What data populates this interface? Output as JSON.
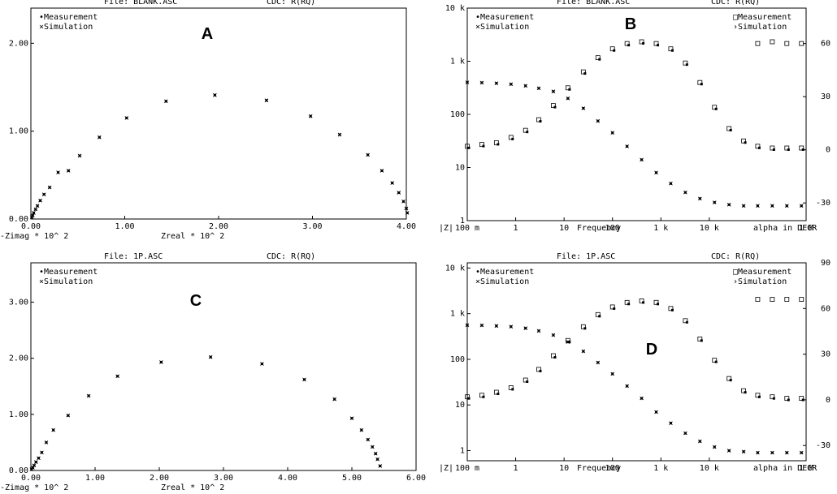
{
  "chart_data": [
    {
      "id": "A",
      "type": "scatter",
      "header": {
        "file": "File: BLANK.ASC",
        "cdc": "CDC: R(RQ)"
      },
      "legend": [
        "•Measurement",
        "×Simulation"
      ],
      "xlabel": "Zreal * 10^  2",
      "ylabel": "-Zimag * 10^  2",
      "xlim": [
        0,
        4
      ],
      "ylim": [
        0,
        2.4
      ],
      "x_ticks": [
        "0.00",
        "1.00",
        "2.00",
        "3.00",
        "4.00"
      ],
      "y_ticks": [
        "0.00",
        "1.00",
        "2.00"
      ],
      "points": [
        [
          0.01,
          0.02
        ],
        [
          0.02,
          0.04
        ],
        [
          0.03,
          0.07
        ],
        [
          0.05,
          0.11
        ],
        [
          0.07,
          0.15
        ],
        [
          0.1,
          0.21
        ],
        [
          0.14,
          0.28
        ],
        [
          0.2,
          0.36
        ],
        [
          0.29,
          0.53
        ],
        [
          0.4,
          0.55
        ],
        [
          0.52,
          0.72
        ],
        [
          0.73,
          0.93
        ],
        [
          1.02,
          1.15
        ],
        [
          1.44,
          1.34
        ],
        [
          1.96,
          1.41
        ],
        [
          2.51,
          1.35
        ],
        [
          2.98,
          1.17
        ],
        [
          3.29,
          0.96
        ],
        [
          3.59,
          0.73
        ],
        [
          3.74,
          0.55
        ],
        [
          3.85,
          0.41
        ],
        [
          3.92,
          0.3
        ],
        [
          3.97,
          0.2
        ],
        [
          4.0,
          0.12
        ],
        [
          4.01,
          0.07
        ]
      ]
    },
    {
      "id": "B",
      "type": "scatter",
      "header": {
        "file": "File: BLANK.ASC",
        "cdc": "CDC: R(RQ)"
      },
      "legend_left": [
        "•Measurement",
        "×Simulation"
      ],
      "legend_right": [
        "□Measurement",
        "›Simulation"
      ],
      "xlabel": "Frequency",
      "left_axis_label": "|Z|",
      "right_axis_label": "alpha in DEGR",
      "x_log_range": [
        0.1,
        1000000
      ],
      "y_log_range": [
        1,
        10000
      ],
      "phase_range": [
        -40,
        80
      ],
      "x_ticks": [
        "100 m",
        "1",
        "10",
        "100",
        "1 k",
        "10 k",
        "1 M"
      ],
      "y_ticks": [
        "1",
        "10",
        "100",
        "1 k",
        "10 k"
      ],
      "phase_ticks": [
        "-30",
        "0",
        "30",
        "60"
      ],
      "magnitude_points": [
        [
          0.1,
          400
        ],
        [
          0.2,
          395
        ],
        [
          0.4,
          385
        ],
        [
          0.8,
          370
        ],
        [
          1.6,
          345
        ],
        [
          3,
          310
        ],
        [
          6,
          270
        ],
        [
          12,
          200
        ],
        [
          25,
          130
        ],
        [
          50,
          75
        ],
        [
          100,
          45
        ],
        [
          200,
          25
        ],
        [
          400,
          14
        ],
        [
          800,
          8
        ],
        [
          1600,
          5
        ],
        [
          3200,
          3.4
        ],
        [
          6400,
          2.6
        ],
        [
          12800,
          2.2
        ],
        [
          25600,
          2.0
        ],
        [
          51200,
          1.9
        ],
        [
          100000,
          1.9
        ],
        [
          200000,
          1.9
        ],
        [
          400000,
          1.9
        ],
        [
          800000,
          1.9
        ]
      ],
      "phase_points": [
        [
          0.1,
          2
        ],
        [
          0.2,
          3
        ],
        [
          0.4,
          4
        ],
        [
          0.8,
          7
        ],
        [
          1.6,
          11
        ],
        [
          3,
          17
        ],
        [
          6,
          25
        ],
        [
          12,
          35
        ],
        [
          25,
          44
        ],
        [
          50,
          52
        ],
        [
          100,
          57
        ],
        [
          200,
          60
        ],
        [
          400,
          61
        ],
        [
          800,
          60
        ],
        [
          1600,
          57
        ],
        [
          3200,
          49
        ],
        [
          6400,
          38
        ],
        [
          12800,
          24
        ],
        [
          25600,
          12
        ],
        [
          51200,
          5
        ],
        [
          100000,
          2
        ],
        [
          200000,
          1
        ],
        [
          400000,
          1
        ],
        [
          800000,
          1
        ]
      ],
      "phase_marker_points": [
        [
          100000,
          60
        ],
        [
          200000,
          61
        ],
        [
          400000,
          60
        ],
        [
          800000,
          60
        ],
        [
          1600000,
          59
        ]
      ]
    },
    {
      "id": "C",
      "type": "scatter",
      "header": {
        "file": "File: 1P.ASC",
        "cdc": "CDC: R(RQ)"
      },
      "legend": [
        "•Measurement",
        "×Simulation"
      ],
      "xlabel": "Zreal * 10^  2",
      "ylabel": "-Zimag * 10^  2",
      "xlim": [
        0,
        6
      ],
      "ylim": [
        0,
        3.7
      ],
      "x_ticks": [
        "0.00",
        "1.00",
        "2.00",
        "3.00",
        "4.00",
        "5.00",
        "6.00"
      ],
      "y_ticks": [
        "0.00",
        "1.00",
        "2.00",
        "3.00"
      ],
      "points": [
        [
          0.01,
          0.02
        ],
        [
          0.03,
          0.05
        ],
        [
          0.05,
          0.09
        ],
        [
          0.08,
          0.15
        ],
        [
          0.12,
          0.22
        ],
        [
          0.17,
          0.32
        ],
        [
          0.24,
          0.5
        ],
        [
          0.35,
          0.72
        ],
        [
          0.58,
          0.98
        ],
        [
          0.9,
          1.33
        ],
        [
          1.35,
          1.68
        ],
        [
          2.03,
          1.93
        ],
        [
          2.8,
          2.02
        ],
        [
          3.6,
          1.9
        ],
        [
          4.26,
          1.62
        ],
        [
          4.73,
          1.27
        ],
        [
          5.0,
          0.93
        ],
        [
          5.15,
          0.72
        ],
        [
          5.25,
          0.55
        ],
        [
          5.32,
          0.42
        ],
        [
          5.37,
          0.3
        ],
        [
          5.4,
          0.2
        ],
        [
          5.44,
          0.08
        ]
      ]
    },
    {
      "id": "D",
      "type": "scatter",
      "header": {
        "file": "File: 1P.ASC",
        "cdc": "CDC: R(RQ)"
      },
      "legend_left": [
        "•Measurement",
        "×Simulation"
      ],
      "legend_right": [
        "□Measurement",
        "›Simulation"
      ],
      "xlabel": "Frequency",
      "left_axis_label": "|Z|",
      "right_axis_label": "alpha in DEGR",
      "x_log_range": [
        0.1,
        1000000
      ],
      "y_log_range": [
        0.6,
        13000
      ],
      "phase_range": [
        -40,
        90
      ],
      "x_ticks": [
        "100 m",
        "1",
        "10",
        "100",
        "1 k",
        "10 k",
        "1 M"
      ],
      "y_ticks": [
        "1",
        "10",
        "100",
        "1 k",
        "10 k"
      ],
      "phase_ticks": [
        "-30",
        "0",
        "30",
        "60",
        "90"
      ],
      "magnitude_points": [
        [
          0.1,
          560
        ],
        [
          0.2,
          555
        ],
        [
          0.4,
          540
        ],
        [
          0.8,
          520
        ],
        [
          1.6,
          480
        ],
        [
          3,
          420
        ],
        [
          6,
          340
        ],
        [
          12,
          240
        ],
        [
          25,
          150
        ],
        [
          50,
          85
        ],
        [
          100,
          48
        ],
        [
          200,
          26
        ],
        [
          400,
          14
        ],
        [
          800,
          7
        ],
        [
          1600,
          4
        ],
        [
          3200,
          2.4
        ],
        [
          6400,
          1.6
        ],
        [
          12800,
          1.2
        ],
        [
          25600,
          1.0
        ],
        [
          51200,
          0.95
        ],
        [
          100000,
          0.9
        ],
        [
          200000,
          0.9
        ],
        [
          400000,
          0.9
        ],
        [
          800000,
          0.9
        ]
      ],
      "phase_points": [
        [
          0.1,
          2
        ],
        [
          0.2,
          3
        ],
        [
          0.4,
          5
        ],
        [
          0.8,
          8
        ],
        [
          1.6,
          13
        ],
        [
          3,
          20
        ],
        [
          6,
          29
        ],
        [
          12,
          39
        ],
        [
          25,
          48
        ],
        [
          50,
          56
        ],
        [
          100,
          61
        ],
        [
          200,
          64
        ],
        [
          400,
          65
        ],
        [
          800,
          64
        ],
        [
          1600,
          60
        ],
        [
          3200,
          52
        ],
        [
          6400,
          40
        ],
        [
          12800,
          26
        ],
        [
          25600,
          14
        ],
        [
          51200,
          6
        ],
        [
          100000,
          3
        ],
        [
          200000,
          2
        ],
        [
          400000,
          1
        ],
        [
          800000,
          1
        ]
      ],
      "phase_marker_points": [
        [
          100000,
          66
        ],
        [
          200000,
          66
        ],
        [
          400000,
          66
        ],
        [
          800000,
          66
        ],
        [
          1600000,
          65
        ]
      ]
    }
  ],
  "panel_letters": [
    "A",
    "B",
    "C",
    "D"
  ]
}
